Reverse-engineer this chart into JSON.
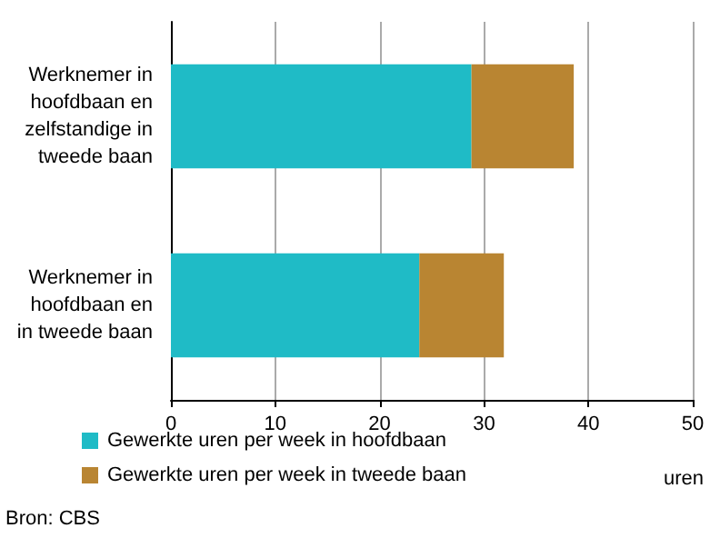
{
  "chart_data": {
    "type": "bar",
    "orientation": "horizontal",
    "stacked": true,
    "categories": [
      "Werknemer in\nhoofdbaan en\nzelfstandige in\ntweede baan",
      "Werknemer in\nhoofdbaan en\nin tweede baan"
    ],
    "series": [
      {
        "name": "Gewerkte uren per week in hoofdbaan",
        "color": "#1fbbc6",
        "values": [
          28.8,
          23.8
        ]
      },
      {
        "name": "Gewerkte uren per week in tweede baan",
        "color": "#b98532",
        "values": [
          9.8,
          8.1
        ]
      }
    ],
    "xlim": [
      0,
      50
    ],
    "xticks": [
      0,
      10,
      20,
      30,
      40,
      50
    ],
    "xlabel": "uren",
    "grid": "x",
    "legend": "bottom",
    "annotations": [
      "Bron: CBS"
    ]
  }
}
